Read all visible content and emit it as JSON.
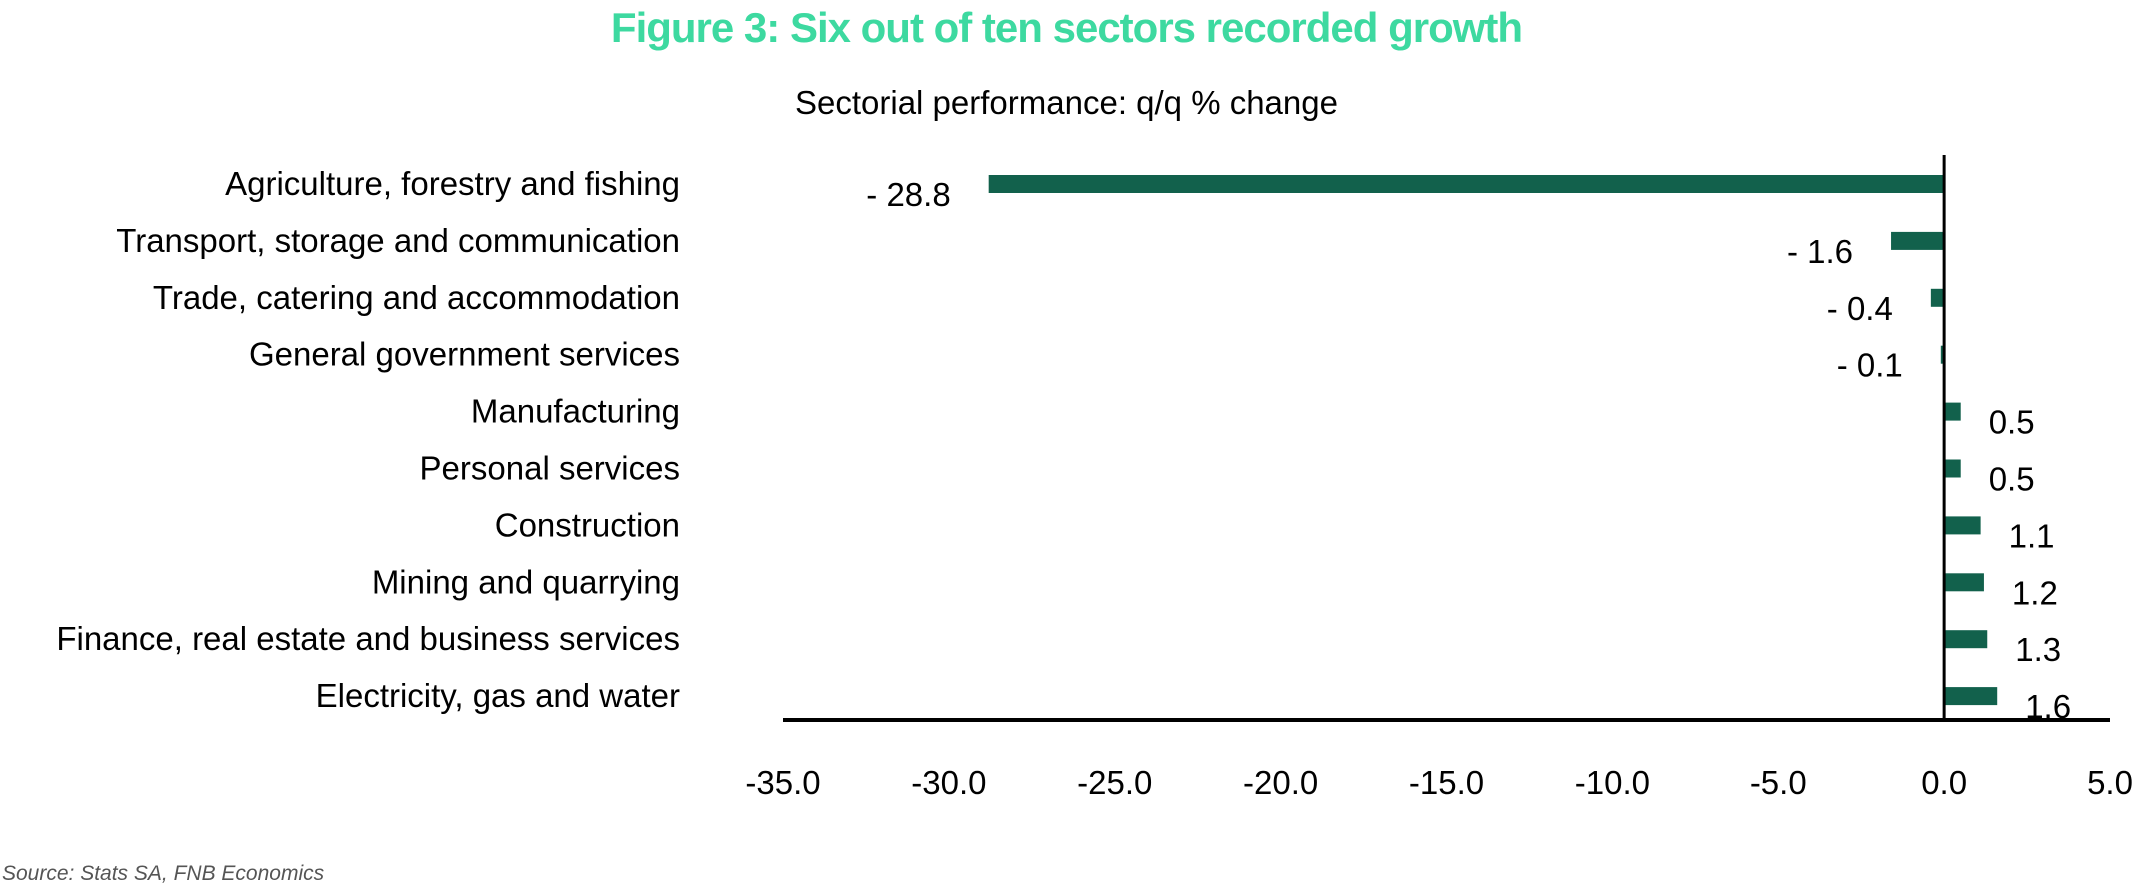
{
  "header": {
    "title": "Figure 3: Six out of ten sectors recorded growth",
    "subtitle": "Sectorial performance: q/q % change",
    "source": "Source: Stats SA, FNB Economics"
  },
  "colors": {
    "title": "#3dd9a0",
    "bar": "#12614c",
    "axis": "#000000"
  },
  "chart_data": {
    "type": "bar",
    "orientation": "horizontal",
    "title": "Figure 3: Six out of ten sectors recorded growth",
    "subtitle": "Sectorial performance: q/q % change",
    "xlabel": "",
    "ylabel": "",
    "categories": [
      "Agriculture, forestry and fishing",
      "Transport, storage and communication",
      "Trade, catering and accommodation",
      "General government services",
      "Manufacturing",
      "Personal services",
      "Construction",
      "Mining and quarrying",
      "Finance, real estate and business services",
      "Electricity, gas and water"
    ],
    "values": [
      -28.8,
      -1.6,
      -0.4,
      -0.1,
      0.5,
      0.5,
      1.1,
      1.2,
      1.3,
      1.6
    ],
    "data_labels": [
      "- 28.8",
      "- 1.6",
      "- 0.4",
      "- 0.1",
      "0.5",
      "0.5",
      "1.1",
      "1.2",
      "1.3",
      "1.6"
    ],
    "xlim": [
      -35,
      5
    ],
    "ticks": [
      -35,
      -30,
      -25,
      -20,
      -15,
      -10,
      -5,
      0,
      5
    ],
    "tick_labels": [
      "-35.0",
      "-30.0",
      "-25.0",
      "-20.0",
      "-15.0",
      "-10.0",
      "-5.0",
      "0.0",
      "5.0"
    ],
    "grid": false,
    "legend": "none"
  }
}
